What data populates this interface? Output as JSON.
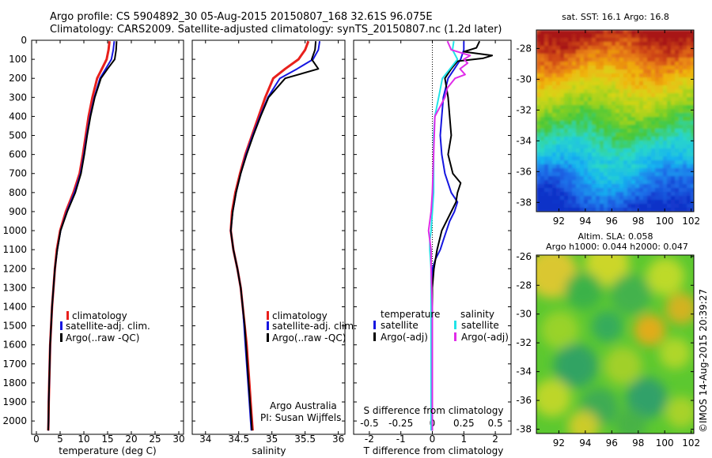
{
  "header": {
    "line1": "Argo profile: CS 5904892_30 05-Aug-2015 20150807_168 32.61S 96.075E",
    "line2": "Climatology: CARS2009. Satellite-adjusted climatology: synTS_20150807.nc (1.2d later)"
  },
  "colors": {
    "climatology": "#e8201c",
    "satellite": "#1616e0",
    "argo": "#000000",
    "sal_satellite": "#22e3e8",
    "sal_argo": "#e02ce8"
  },
  "chart_data": [
    {
      "type": "line",
      "name": "temperature-profile",
      "xlabel": "temperature (deg C)",
      "ylabel": "",
      "xlim": [
        -1,
        31
      ],
      "ylim": [
        2070,
        0
      ],
      "xticks": [
        0,
        5,
        10,
        15,
        20,
        25,
        30
      ],
      "yticks": [
        0,
        100,
        200,
        300,
        400,
        500,
        600,
        700,
        800,
        900,
        1000,
        1100,
        1200,
        1300,
        1400,
        1500,
        1600,
        1700,
        1800,
        1900,
        2000
      ],
      "legend": {
        "placement": "lower-middle",
        "entries": [
          "climatology",
          "satellite-adj. clim.",
          "Argo(..raw -QC)"
        ]
      },
      "series": [
        {
          "name": "climatology",
          "color_key": "climatology",
          "depth": [
            5,
            50,
            100,
            150,
            200,
            300,
            400,
            500,
            600,
            700,
            800,
            900,
            1000,
            1100,
            1200,
            1300,
            1400,
            1500,
            1600,
            1700,
            1800,
            1900,
            2000,
            2050
          ],
          "values": [
            15.4,
            15.2,
            14.8,
            13.8,
            12.8,
            11.8,
            11.0,
            10.4,
            9.8,
            9.1,
            7.8,
            6.2,
            5.0,
            4.3,
            3.9,
            3.6,
            3.3,
            3.1,
            2.9,
            2.8,
            2.7,
            2.6,
            2.55,
            2.5
          ]
        },
        {
          "name": "satellite-adj. clim.",
          "color_key": "satellite",
          "depth": [
            5,
            50,
            100,
            150,
            200,
            300,
            400,
            500,
            600,
            700,
            800,
            900,
            1000,
            1100,
            1200,
            1300,
            1400,
            1500,
            1600,
            1700,
            1800,
            1900,
            2000,
            2050
          ],
          "values": [
            16.4,
            16.2,
            15.8,
            14.6,
            13.4,
            12.2,
            11.3,
            10.6,
            10.0,
            9.3,
            8.0,
            6.4,
            5.1,
            4.4,
            3.9,
            3.6,
            3.3,
            3.1,
            2.9,
            2.8,
            2.7,
            2.6,
            2.55,
            2.5
          ]
        },
        {
          "name": "Argo(..raw -QC)",
          "color_key": "argo",
          "depth": [
            5,
            50,
            100,
            150,
            200,
            300,
            400,
            500,
            600,
            700,
            800,
            900,
            1000,
            1100,
            1200,
            1300,
            1400,
            1500,
            1600,
            1700,
            1800,
            1900,
            2000,
            2050
          ],
          "values": [
            16.9,
            16.8,
            16.5,
            15.0,
            13.6,
            12.3,
            11.4,
            10.7,
            10.1,
            9.4,
            8.2,
            6.5,
            5.1,
            4.4,
            3.9,
            3.6,
            3.3,
            3.1,
            2.9,
            2.8,
            2.7,
            2.6,
            2.55,
            2.5
          ]
        }
      ]
    },
    {
      "type": "line",
      "name": "salinity-profile",
      "xlabel": "salinity",
      "xlim": [
        33.8,
        36.1
      ],
      "ylim": [
        2070,
        0
      ],
      "xticks": [
        34,
        34.5,
        35,
        35.5,
        36
      ],
      "legend": {
        "placement": "lower-middle",
        "entries": [
          "climatology",
          "satellite-adj. clim.",
          "Argo(..raw -QC)"
        ]
      },
      "annotation_lines": [
        "Argo Australia",
        "PI: Susan Wijffels"
      ],
      "series": [
        {
          "name": "climatology",
          "color_key": "climatology",
          "depth": [
            5,
            50,
            100,
            150,
            200,
            300,
            400,
            500,
            600,
            700,
            800,
            900,
            1000,
            1100,
            1200,
            1300,
            1400,
            1500,
            1600,
            1700,
            1800,
            1900,
            2000,
            2050
          ],
          "values": [
            35.55,
            35.5,
            35.4,
            35.2,
            35.02,
            34.9,
            34.8,
            34.7,
            34.6,
            34.52,
            34.45,
            34.4,
            34.38,
            34.42,
            34.48,
            34.53,
            34.56,
            34.59,
            34.62,
            34.64,
            34.66,
            34.68,
            34.7,
            34.71
          ]
        },
        {
          "name": "satellite-adj. clim.",
          "color_key": "satellite",
          "depth": [
            5,
            50,
            100,
            150,
            200,
            300,
            400,
            500,
            600,
            700,
            800,
            900,
            1000,
            1100,
            1200,
            1300,
            1400,
            1500,
            1600,
            1700,
            1800,
            1900,
            2000,
            2050
          ],
          "values": [
            35.72,
            35.7,
            35.62,
            35.38,
            35.12,
            34.94,
            34.82,
            34.71,
            34.61,
            34.53,
            34.46,
            34.41,
            34.38,
            34.42,
            34.48,
            34.53,
            34.56,
            34.58,
            34.6,
            34.62,
            34.64,
            34.66,
            34.68,
            34.69
          ]
        },
        {
          "name": "Argo(..raw -QC)",
          "color_key": "argo",
          "depth": [
            5,
            50,
            100,
            150,
            200,
            300,
            400,
            500,
            600,
            700,
            800,
            900,
            1000,
            1100,
            1200,
            1300,
            1400,
            1500,
            1600,
            1700,
            1800,
            1900,
            2000,
            2050
          ],
          "values": [
            35.66,
            35.65,
            35.6,
            35.7,
            35.2,
            34.95,
            34.83,
            34.72,
            34.62,
            34.53,
            34.46,
            34.41,
            34.38,
            34.42,
            34.48,
            34.53,
            34.56,
            34.59,
            34.61,
            34.63,
            34.65,
            34.67,
            34.69,
            34.7
          ]
        }
      ]
    },
    {
      "type": "line",
      "name": "difference-profile",
      "xlabel": "T difference from climatology",
      "xlabel_top": "S difference from climatology",
      "xlim": [
        -2.5,
        2.5
      ],
      "ylim": [
        2070,
        0
      ],
      "xticks": [
        -2,
        -1,
        0,
        1,
        2
      ],
      "xticks_top": [
        -0.5,
        -0.25,
        0,
        0.25,
        0.5
      ],
      "xticks_top_labels": [
        "-0.5",
        "-0.25",
        "0",
        "0.25",
        "0.5"
      ],
      "zero_line": "dotted",
      "legend": {
        "placement": "lower-middle",
        "groups": [
          "temperature",
          "salinity"
        ],
        "entries": [
          "satellite",
          "Argo(-adj)",
          "satellite",
          "Argo(-adj)"
        ]
      },
      "series": [
        {
          "name": "satellite",
          "group": "temperature",
          "color_key": "satellite",
          "axis": "T",
          "depth": [
            5,
            50,
            100,
            150,
            200,
            300,
            400,
            500,
            600,
            700,
            800,
            850,
            900,
            950,
            1000,
            1050,
            1100,
            1150,
            1200,
            1300,
            1400,
            1500,
            1700,
            2000,
            2050
          ],
          "values": [
            1.0,
            1.0,
            0.9,
            0.7,
            0.5,
            0.35,
            0.3,
            0.25,
            0.3,
            0.4,
            0.6,
            0.8,
            0.7,
            0.55,
            0.45,
            0.35,
            0.25,
            0.1,
            0.0,
            0.0,
            0.0,
            0.0,
            0.0,
            0.0,
            0.0
          ]
        },
        {
          "name": "Argo(-adj)",
          "group": "temperature",
          "color_key": "argo",
          "axis": "T",
          "depth": [
            5,
            40,
            60,
            80,
            95,
            110,
            150,
            200,
            300,
            400,
            500,
            600,
            700,
            750,
            800,
            850,
            900,
            1000,
            1100,
            1200,
            1300,
            1500,
            1700,
            2000,
            2050
          ],
          "values": [
            1.5,
            1.4,
            1.0,
            1.9,
            1.6,
            0.8,
            0.6,
            0.4,
            0.5,
            0.55,
            0.6,
            0.5,
            0.65,
            0.9,
            0.8,
            0.75,
            0.6,
            0.3,
            0.15,
            0.05,
            0.0,
            0.0,
            0.0,
            0.0,
            0.0
          ]
        },
        {
          "name": "satellite",
          "group": "salinity",
          "color_key": "sal_satellite",
          "axis": "S",
          "depth": [
            5,
            50,
            100,
            150,
            200,
            300,
            400,
            500,
            600,
            700,
            800,
            900,
            1000,
            1050,
            1100,
            1200,
            1400,
            1600,
            1800,
            2000,
            2050
          ],
          "values": [
            0.17,
            0.16,
            0.2,
            0.14,
            0.08,
            0.05,
            0.02,
            0.01,
            0.01,
            0.01,
            0.01,
            0.0,
            -0.01,
            -0.02,
            -0.02,
            -0.01,
            -0.01,
            -0.01,
            -0.01,
            -0.01,
            -0.01
          ]
        },
        {
          "name": "Argo(-adj)",
          "group": "salinity",
          "color_key": "sal_argo",
          "axis": "S",
          "depth": [
            5,
            50,
            80,
            100,
            120,
            150,
            180,
            200,
            250,
            300,
            350,
            400,
            600,
            800,
            900,
            1000,
            1050,
            1100,
            1200,
            1400,
            1600,
            1800,
            2000,
            2050
          ],
          "values": [
            0.12,
            0.15,
            0.3,
            0.25,
            0.28,
            0.22,
            0.26,
            0.18,
            0.12,
            0.1,
            0.06,
            0.02,
            0.01,
            0.0,
            -0.01,
            -0.03,
            -0.02,
            -0.01,
            -0.01,
            0.0,
            0.0,
            0.0,
            0.0,
            0.0
          ]
        }
      ]
    },
    {
      "type": "heatmap",
      "name": "sst-map",
      "title": "sat. SST: 16.1  Argo: 16.8",
      "xlim": [
        90.3,
        102.2
      ],
      "ylim": [
        -38.6,
        -26.8
      ],
      "xticks": [
        92,
        94,
        96,
        98,
        100,
        102
      ],
      "yticks": [
        -28,
        -30,
        -32,
        -34,
        -36,
        -38
      ],
      "colormap": "jet",
      "marker": {
        "lon": 96.075,
        "lat": -32.61
      }
    },
    {
      "type": "heatmap",
      "name": "sla-map",
      "title_lines": [
        "Altim. SLA: 0.058",
        "Argo h1000: 0.044  h2000: 0.047"
      ],
      "xlim": [
        90.3,
        102.2
      ],
      "ylim": [
        -38.3,
        -25.9
      ],
      "xticks": [
        92,
        94,
        96,
        98,
        100,
        102
      ],
      "yticks": [
        -26,
        -28,
        -30,
        -32,
        -34,
        -36,
        -38
      ],
      "colormap": "jet-mid"
    }
  ],
  "side_stamp": "©IMOS 14-Aug-2015 20:39:27"
}
